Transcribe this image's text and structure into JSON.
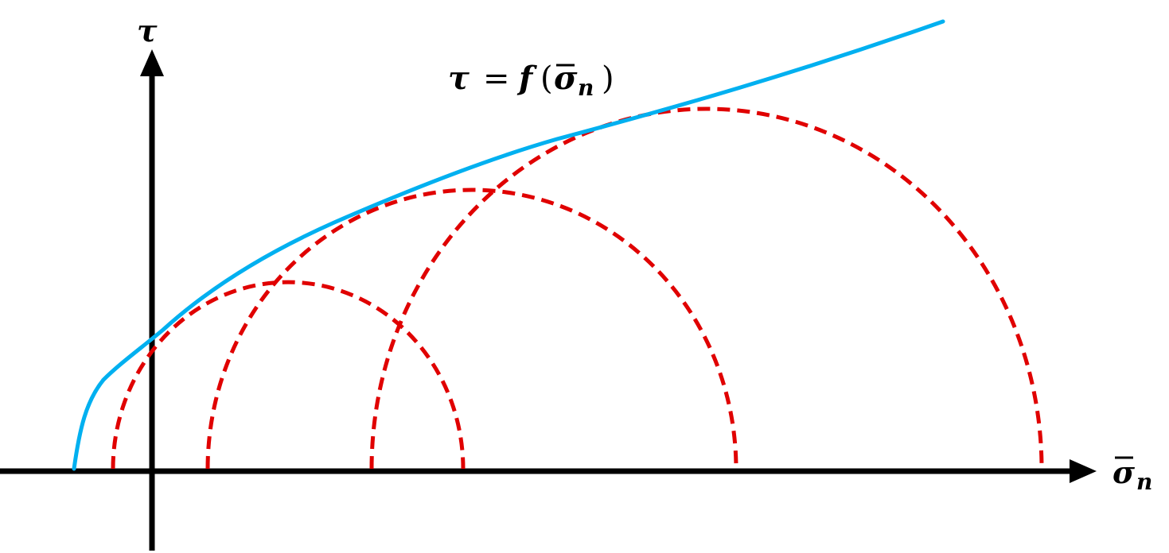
{
  "labels": {
    "tau_axis": "τ",
    "sigma_axis_symbol": "σ",
    "sigma_axis_subscript": "n",
    "envelope_lhs": "τ",
    "envelope_equals": "=",
    "envelope_func": "f",
    "envelope_open": "(",
    "envelope_sigma": "σ",
    "envelope_subscript": "n",
    "envelope_close": ")"
  },
  "colors": {
    "axis": "#000000",
    "envelope": "#00b0f0",
    "mohr_circles": "#e00000"
  }
}
